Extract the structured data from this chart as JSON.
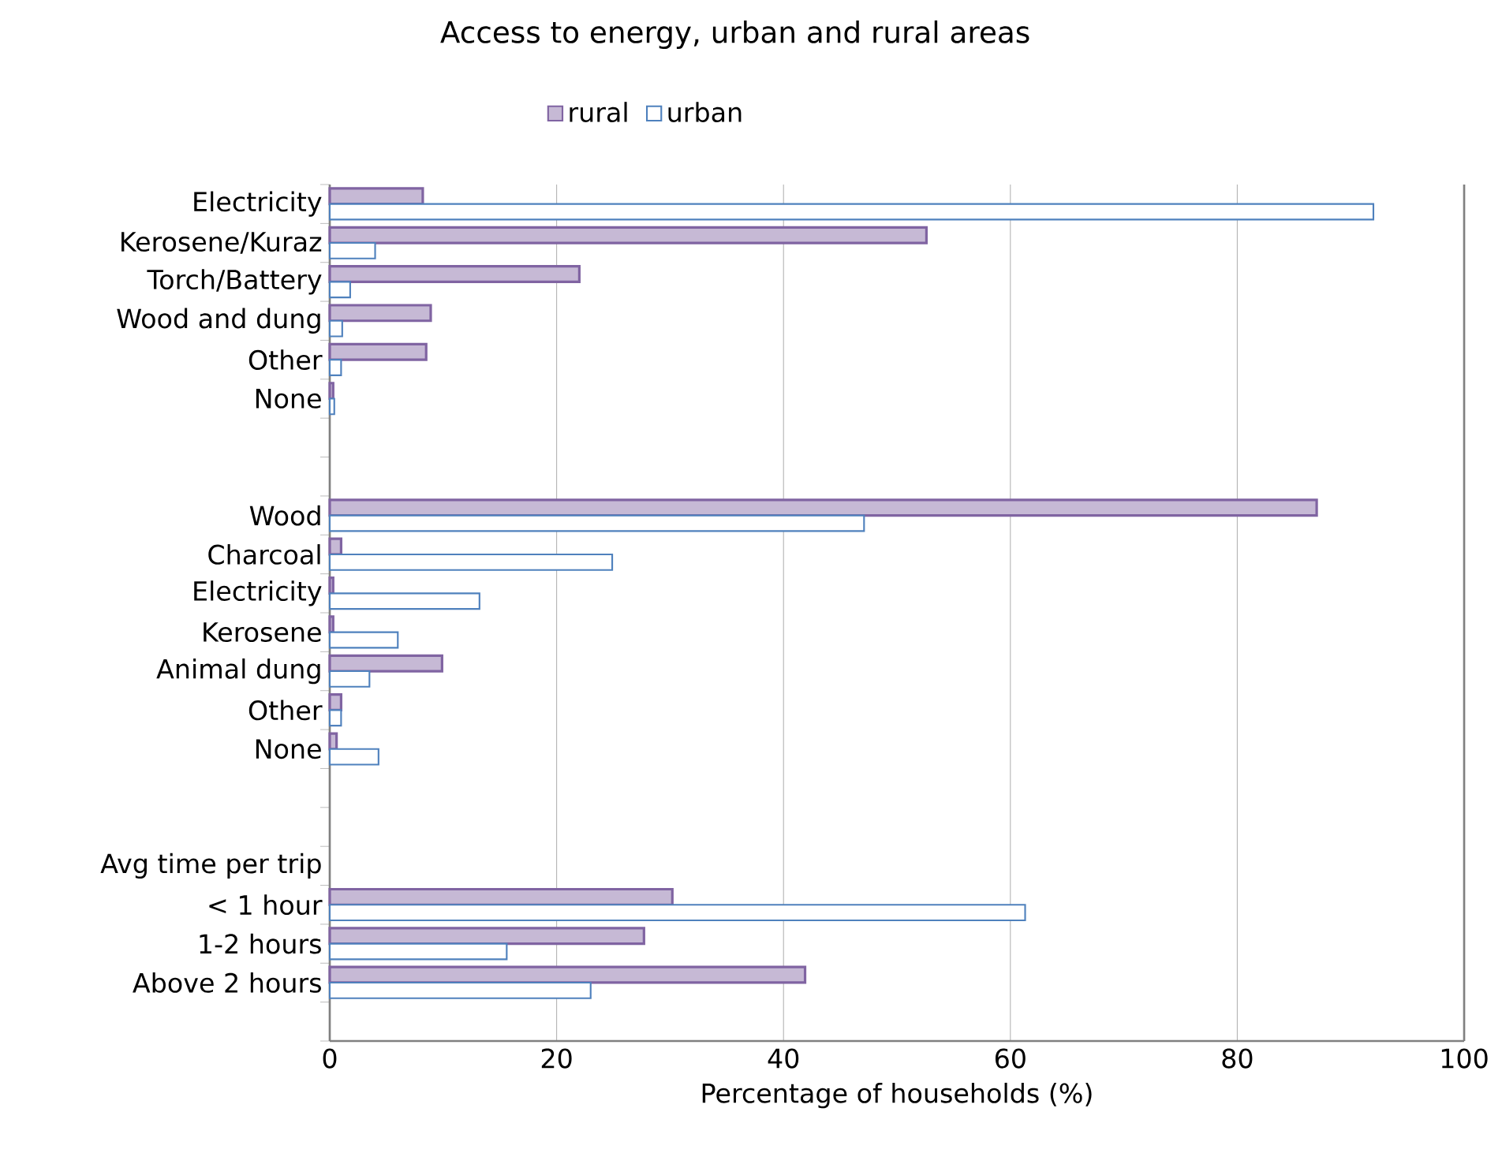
{
  "chart_data": {
    "type": "bar",
    "orientation": "horizontal",
    "title": "Access to energy, urban and rural areas",
    "xlabel": "Percentage of households (%)",
    "categories": [
      "Electricity",
      "Kerosene/Kuraz",
      "Torch/Battery",
      "Wood and dung",
      "Other",
      "None",
      null,
      null,
      "Wood",
      "Charcoal",
      "Electricity",
      "Kerosene",
      "Animal dung",
      "Other",
      "None",
      null,
      null,
      "Avg time per trip",
      "< 1 hour",
      "1-2 hours",
      "Above 2 hours",
      null
    ],
    "series": [
      {
        "name": "rural",
        "color": "#8064a2",
        "values": [
          8.2,
          52.6,
          22,
          8.9,
          8.5,
          0.3,
          null,
          null,
          87,
          1,
          0.3,
          0.3,
          9.9,
          1,
          0.6,
          null,
          null,
          null,
          30.2,
          27.7,
          41.9,
          null
        ]
      },
      {
        "name": "urban",
        "color": "#4f81bd",
        "values": [
          92,
          4,
          1.8,
          1.1,
          1,
          0.4,
          null,
          null,
          47.1,
          24.9,
          13.2,
          6,
          3.5,
          1,
          4.3,
          null,
          null,
          null,
          61.3,
          15.6,
          23,
          null
        ]
      }
    ],
    "xlim": [
      0,
      100
    ],
    "xticks": [
      0,
      20,
      40,
      60,
      80,
      100
    ],
    "grid": "x",
    "legend": "top"
  }
}
